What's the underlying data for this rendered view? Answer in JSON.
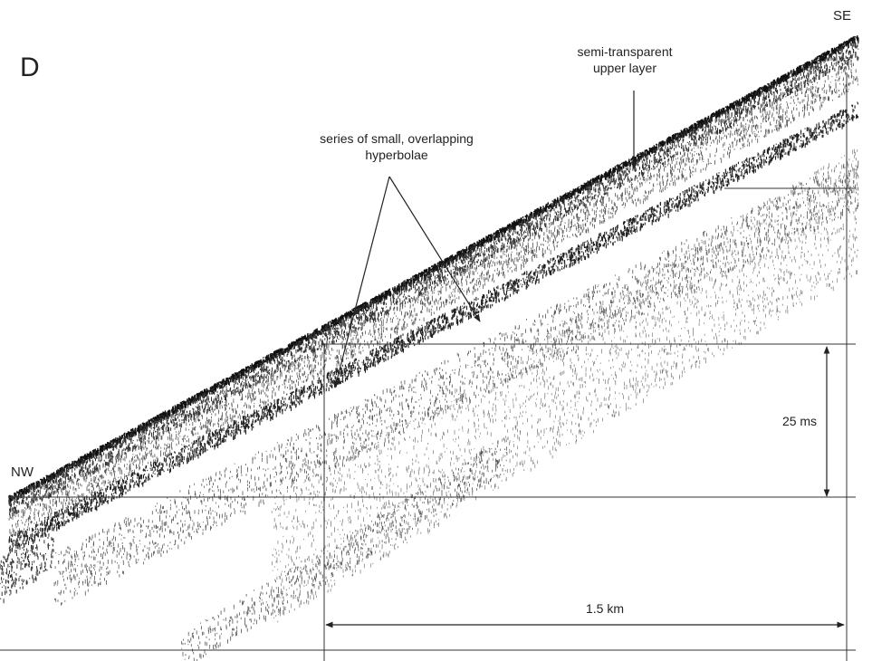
{
  "panel_label": "D",
  "orientation": {
    "left": "NW",
    "right": "SE"
  },
  "annotations": [
    {
      "lines": [
        "semi-transparent",
        "upper layer"
      ]
    },
    {
      "lines": [
        "series of small, overlapping",
        "hyperbolae"
      ]
    }
  ],
  "scale": {
    "vertical": "25 ms",
    "horizontal": "1.5 km"
  }
}
